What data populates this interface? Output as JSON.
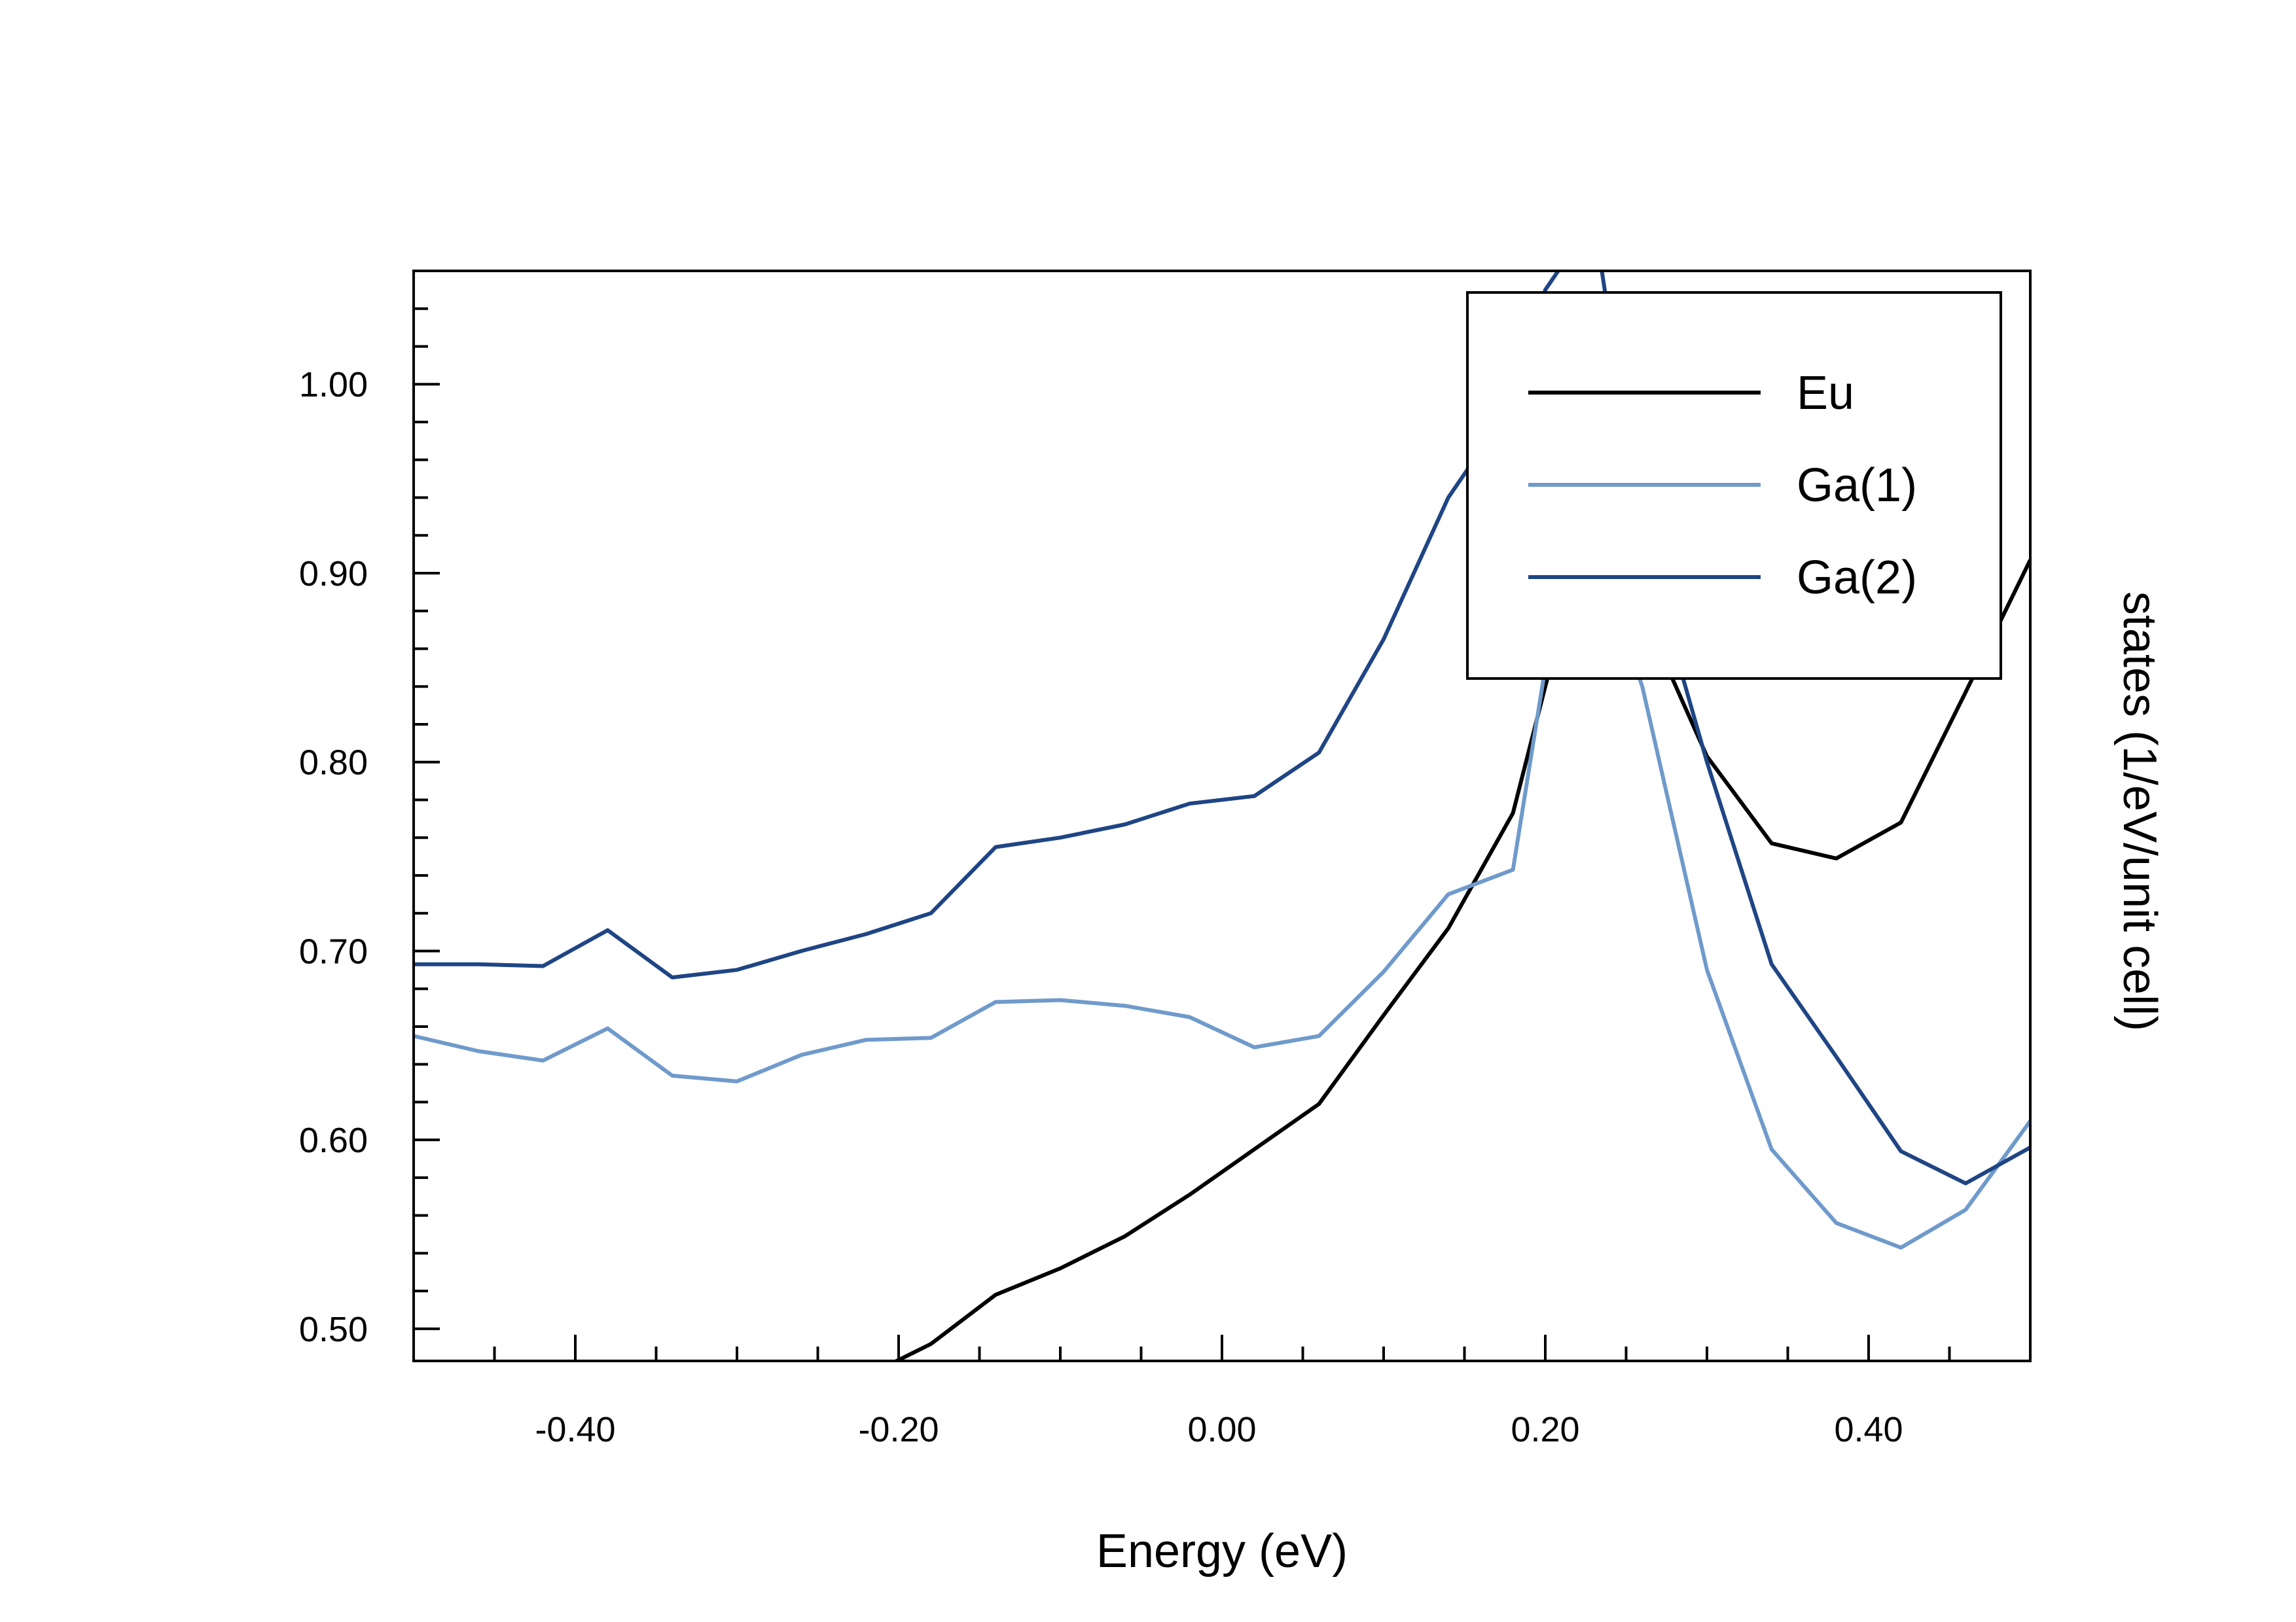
{
  "chart_data": {
    "type": "line",
    "title": "",
    "xlabel": "Energy (eV)",
    "ylabel": "states (1/eV/unit cell)",
    "xlim": [
      -0.5,
      0.5
    ],
    "ylim": [
      0.483,
      1.06
    ],
    "grid": false,
    "legend_position": "top-right",
    "x_major_ticks": [
      -0.4,
      -0.2,
      0.0,
      0.2,
      0.4
    ],
    "x_tick_labels": [
      "-0.40",
      "-0.20",
      "0.00",
      "0.20",
      "0.40"
    ],
    "x_minor_step": 0.05,
    "y_major_ticks": [
      0.5,
      0.6,
      0.7,
      0.8,
      0.9,
      1.0
    ],
    "y_tick_labels": [
      "0.50",
      "0.60",
      "0.70",
      "0.80",
      "0.90",
      "1.00"
    ],
    "y_minor_step": 0.02,
    "series": [
      {
        "name": "Eu",
        "color": "#000000",
        "x": [
          -0.22,
          -0.18,
          -0.14,
          -0.1,
          -0.06,
          -0.02,
          0.02,
          0.06,
          0.1,
          0.14,
          0.18,
          0.2,
          0.22,
          0.24,
          0.26,
          0.3,
          0.34,
          0.38,
          0.42,
          0.46,
          0.5
        ],
        "y": [
          0.475,
          0.492,
          0.518,
          0.532,
          0.549,
          0.571,
          0.595,
          0.619,
          0.666,
          0.712,
          0.773,
          0.84,
          0.905,
          0.92,
          0.88,
          0.803,
          0.757,
          0.749,
          0.768,
          0.837,
          0.907
        ]
      },
      {
        "name": "Ga(1)",
        "color": "#6f9acb",
        "x": [
          -0.5,
          -0.46,
          -0.42,
          -0.38,
          -0.34,
          -0.3,
          -0.26,
          -0.22,
          -0.18,
          -0.14,
          -0.1,
          -0.06,
          -0.02,
          0.02,
          0.06,
          0.1,
          0.14,
          0.18,
          0.2,
          0.22,
          0.24,
          0.26,
          0.3,
          0.34,
          0.38,
          0.42,
          0.46,
          0.5
        ],
        "y": [
          0.655,
          0.647,
          0.642,
          0.659,
          0.634,
          0.631,
          0.645,
          0.653,
          0.654,
          0.673,
          0.674,
          0.671,
          0.665,
          0.649,
          0.655,
          0.689,
          0.73,
          0.743,
          0.85,
          0.9,
          0.89,
          0.84,
          0.69,
          0.595,
          0.556,
          0.543,
          0.563,
          0.61
        ]
      },
      {
        "name": "Ga(2)",
        "color": "#1f4584",
        "x": [
          -0.5,
          -0.46,
          -0.42,
          -0.38,
          -0.34,
          -0.3,
          -0.26,
          -0.22,
          -0.18,
          -0.14,
          -0.1,
          -0.06,
          -0.02,
          0.02,
          0.06,
          0.1,
          0.14,
          0.18,
          0.2,
          0.22,
          0.235,
          0.26,
          0.3,
          0.34,
          0.38,
          0.42,
          0.46,
          0.5
        ],
        "y": [
          0.693,
          0.693,
          0.692,
          0.711,
          0.686,
          0.69,
          0.7,
          0.709,
          0.72,
          0.755,
          0.76,
          0.767,
          0.778,
          0.782,
          0.805,
          0.865,
          0.94,
          0.99,
          1.05,
          1.075,
          1.06,
          0.92,
          0.8,
          0.693,
          0.644,
          0.594,
          0.577,
          0.596
        ]
      }
    ]
  }
}
